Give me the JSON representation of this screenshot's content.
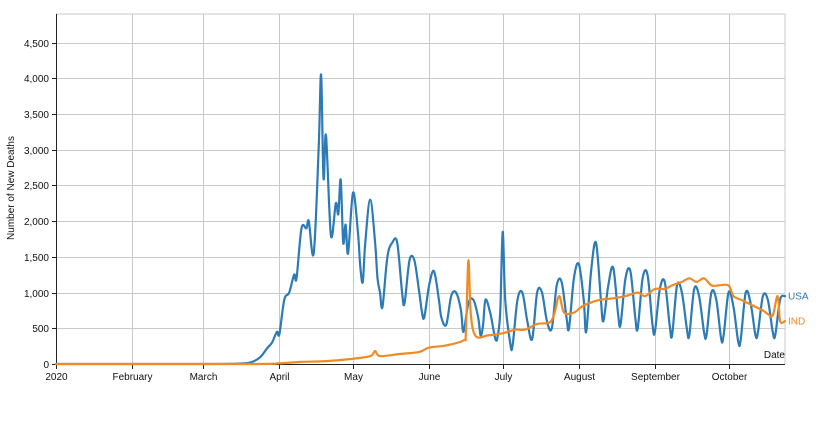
{
  "chart_data": {
    "type": "line",
    "xlabel": "Date",
    "ylabel": "Number of New Deaths",
    "xlim": [
      "2020-01-01",
      "2020-10-24"
    ],
    "ylim": [
      0,
      4900
    ],
    "grid": true,
    "x_ticks": [
      {
        "date": "2020-01-01",
        "label": "2020"
      },
      {
        "date": "2020-02-01",
        "label": "February"
      },
      {
        "date": "2020-03-01",
        "label": "March"
      },
      {
        "date": "2020-04-01",
        "label": "April"
      },
      {
        "date": "2020-05-01",
        "label": "May"
      },
      {
        "date": "2020-06-01",
        "label": "June"
      },
      {
        "date": "2020-07-01",
        "label": "July"
      },
      {
        "date": "2020-08-01",
        "label": "August"
      },
      {
        "date": "2020-09-01",
        "label": "September"
      },
      {
        "date": "2020-10-01",
        "label": "October"
      }
    ],
    "y_ticks": [
      {
        "value": 0,
        "label": "0"
      },
      {
        "value": 500,
        "label": "500"
      },
      {
        "value": 1000,
        "label": "1,000"
      },
      {
        "value": 1500,
        "label": "1,500"
      },
      {
        "value": 2000,
        "label": "2,000"
      },
      {
        "value": 2500,
        "label": "2,500"
      },
      {
        "value": 3000,
        "label": "3,000"
      },
      {
        "value": 3500,
        "label": "3,500"
      },
      {
        "value": 4000,
        "label": "4,000"
      },
      {
        "value": 4500,
        "label": "4,500"
      }
    ],
    "series": [
      {
        "name": "USA",
        "color": "#2c7bb6",
        "points": [
          [
            "2020-01-01",
            0
          ],
          [
            "2020-03-01",
            0
          ],
          [
            "2020-03-15",
            5
          ],
          [
            "2020-03-20",
            20
          ],
          [
            "2020-03-24",
            90
          ],
          [
            "2020-03-27",
            220
          ],
          [
            "2020-03-29",
            300
          ],
          [
            "2020-03-31",
            450
          ],
          [
            "2020-04-01",
            420
          ],
          [
            "2020-04-03",
            900
          ],
          [
            "2020-04-05",
            1000
          ],
          [
            "2020-04-07",
            1250
          ],
          [
            "2020-04-08",
            1200
          ],
          [
            "2020-04-10",
            1900
          ],
          [
            "2020-04-12",
            1900
          ],
          [
            "2020-04-13",
            2000
          ],
          [
            "2020-04-15",
            1550
          ],
          [
            "2020-04-17",
            3000
          ],
          [
            "2020-04-18",
            4050
          ],
          [
            "2020-04-19",
            2600
          ],
          [
            "2020-04-20",
            3200
          ],
          [
            "2020-04-22",
            1800
          ],
          [
            "2020-04-24",
            2250
          ],
          [
            "2020-04-25",
            2100
          ],
          [
            "2020-04-26",
            2580
          ],
          [
            "2020-04-27",
            1700
          ],
          [
            "2020-04-28",
            1950
          ],
          [
            "2020-04-29",
            1550
          ],
          [
            "2020-05-01",
            2400
          ],
          [
            "2020-05-03",
            1850
          ],
          [
            "2020-05-04",
            1350
          ],
          [
            "2020-05-05",
            1150
          ],
          [
            "2020-05-06",
            1700
          ],
          [
            "2020-05-08",
            2300
          ],
          [
            "2020-05-10",
            1700
          ],
          [
            "2020-05-11",
            1200
          ],
          [
            "2020-05-12",
            1000
          ],
          [
            "2020-05-13",
            800
          ],
          [
            "2020-05-15",
            1500
          ],
          [
            "2020-05-17",
            1700
          ],
          [
            "2020-05-19",
            1700
          ],
          [
            "2020-05-21",
            1000
          ],
          [
            "2020-05-22",
            850
          ],
          [
            "2020-05-24",
            1450
          ],
          [
            "2020-05-26",
            1450
          ],
          [
            "2020-05-28",
            1000
          ],
          [
            "2020-05-29",
            750
          ],
          [
            "2020-05-30",
            650
          ],
          [
            "2020-06-01",
            1100
          ],
          [
            "2020-06-03",
            1300
          ],
          [
            "2020-06-05",
            900
          ],
          [
            "2020-06-06",
            650
          ],
          [
            "2020-06-08",
            550
          ],
          [
            "2020-06-10",
            950
          ],
          [
            "2020-06-12",
            1000
          ],
          [
            "2020-06-14",
            750
          ],
          [
            "2020-06-15",
            450
          ],
          [
            "2020-06-17",
            850
          ],
          [
            "2020-06-19",
            900
          ],
          [
            "2020-06-21",
            650
          ],
          [
            "2020-06-22",
            400
          ],
          [
            "2020-06-23",
            550
          ],
          [
            "2020-06-24",
            900
          ],
          [
            "2020-06-26",
            700
          ],
          [
            "2020-06-28",
            350
          ],
          [
            "2020-06-29",
            400
          ],
          [
            "2020-06-30",
            750
          ],
          [
            "2020-07-01",
            1850
          ],
          [
            "2020-07-02",
            900
          ],
          [
            "2020-07-04",
            300
          ],
          [
            "2020-07-05",
            250
          ],
          [
            "2020-07-07",
            900
          ],
          [
            "2020-07-09",
            1000
          ],
          [
            "2020-07-11",
            600
          ],
          [
            "2020-07-13",
            350
          ],
          [
            "2020-07-15",
            1000
          ],
          [
            "2020-07-17",
            1000
          ],
          [
            "2020-07-19",
            600
          ],
          [
            "2020-07-21",
            500
          ],
          [
            "2020-07-23",
            1100
          ],
          [
            "2020-07-25",
            1150
          ],
          [
            "2020-07-27",
            650
          ],
          [
            "2020-07-28",
            500
          ],
          [
            "2020-07-30",
            1200
          ],
          [
            "2020-08-01",
            1400
          ],
          [
            "2020-08-03",
            900
          ],
          [
            "2020-08-04",
            450
          ],
          [
            "2020-08-06",
            1300
          ],
          [
            "2020-08-08",
            1700
          ],
          [
            "2020-08-10",
            900
          ],
          [
            "2020-08-11",
            600
          ],
          [
            "2020-08-13",
            1100
          ],
          [
            "2020-08-15",
            1350
          ],
          [
            "2020-08-17",
            700
          ],
          [
            "2020-08-18",
            550
          ],
          [
            "2020-08-20",
            1200
          ],
          [
            "2020-08-22",
            1300
          ],
          [
            "2020-08-24",
            650
          ],
          [
            "2020-08-25",
            500
          ],
          [
            "2020-08-27",
            1200
          ],
          [
            "2020-08-29",
            1250
          ],
          [
            "2020-08-31",
            550
          ],
          [
            "2020-09-01",
            450
          ],
          [
            "2020-09-03",
            1050
          ],
          [
            "2020-09-05",
            1150
          ],
          [
            "2020-09-07",
            550
          ],
          [
            "2020-09-08",
            400
          ],
          [
            "2020-09-10",
            1100
          ],
          [
            "2020-09-12",
            1000
          ],
          [
            "2020-09-14",
            500
          ],
          [
            "2020-09-15",
            400
          ],
          [
            "2020-09-17",
            1050
          ],
          [
            "2020-09-19",
            950
          ],
          [
            "2020-09-21",
            450
          ],
          [
            "2020-09-22",
            400
          ],
          [
            "2020-09-24",
            1000
          ],
          [
            "2020-09-26",
            900
          ],
          [
            "2020-09-28",
            350
          ],
          [
            "2020-09-29",
            400
          ],
          [
            "2020-10-01",
            1000
          ],
          [
            "2020-10-03",
            800
          ],
          [
            "2020-10-05",
            300
          ],
          [
            "2020-10-06",
            350
          ],
          [
            "2020-10-08",
            1000
          ],
          [
            "2020-10-10",
            850
          ],
          [
            "2020-10-12",
            400
          ],
          [
            "2020-10-13",
            450
          ],
          [
            "2020-10-15",
            950
          ],
          [
            "2020-10-17",
            900
          ],
          [
            "2020-10-19",
            450
          ],
          [
            "2020-10-20",
            400
          ],
          [
            "2020-10-22",
            900
          ],
          [
            "2020-10-24",
            950
          ]
        ]
      },
      {
        "name": "IND",
        "color": "#f08a24",
        "points": [
          [
            "2020-01-01",
            0
          ],
          [
            "2020-03-20",
            0
          ],
          [
            "2020-04-01",
            10
          ],
          [
            "2020-04-10",
            30
          ],
          [
            "2020-04-20",
            40
          ],
          [
            "2020-04-30",
            70
          ],
          [
            "2020-05-08",
            110
          ],
          [
            "2020-05-10",
            180
          ],
          [
            "2020-05-12",
            110
          ],
          [
            "2020-05-20",
            140
          ],
          [
            "2020-05-28",
            170
          ],
          [
            "2020-06-01",
            230
          ],
          [
            "2020-06-08",
            260
          ],
          [
            "2020-06-15",
            330
          ],
          [
            "2020-06-16",
            450
          ],
          [
            "2020-06-17",
            1450
          ],
          [
            "2020-06-18",
            700
          ],
          [
            "2020-06-20",
            390
          ],
          [
            "2020-06-25",
            400
          ],
          [
            "2020-07-01",
            430
          ],
          [
            "2020-07-06",
            480
          ],
          [
            "2020-07-10",
            480
          ],
          [
            "2020-07-15",
            560
          ],
          [
            "2020-07-20",
            580
          ],
          [
            "2020-07-22",
            700
          ],
          [
            "2020-07-24",
            950
          ],
          [
            "2020-07-26",
            720
          ],
          [
            "2020-07-30",
            720
          ],
          [
            "2020-08-02",
            800
          ],
          [
            "2020-08-05",
            850
          ],
          [
            "2020-08-10",
            900
          ],
          [
            "2020-08-15",
            920
          ],
          [
            "2020-08-20",
            950
          ],
          [
            "2020-08-25",
            1000
          ],
          [
            "2020-08-28",
            950
          ],
          [
            "2020-09-01",
            1050
          ],
          [
            "2020-09-05",
            1050
          ],
          [
            "2020-09-08",
            1100
          ],
          [
            "2020-09-12",
            1150
          ],
          [
            "2020-09-15",
            1200
          ],
          [
            "2020-09-18",
            1150
          ],
          [
            "2020-09-21",
            1200
          ],
          [
            "2020-09-24",
            1100
          ],
          [
            "2020-09-27",
            1100
          ],
          [
            "2020-10-01",
            1100
          ],
          [
            "2020-10-03",
            950
          ],
          [
            "2020-10-06",
            900
          ],
          [
            "2020-10-09",
            850
          ],
          [
            "2020-10-12",
            800
          ],
          [
            "2020-10-15",
            750
          ],
          [
            "2020-10-17",
            700
          ],
          [
            "2020-10-19",
            680
          ],
          [
            "2020-10-21",
            950
          ],
          [
            "2020-10-22",
            600
          ],
          [
            "2020-10-24",
            600
          ]
        ]
      }
    ]
  }
}
